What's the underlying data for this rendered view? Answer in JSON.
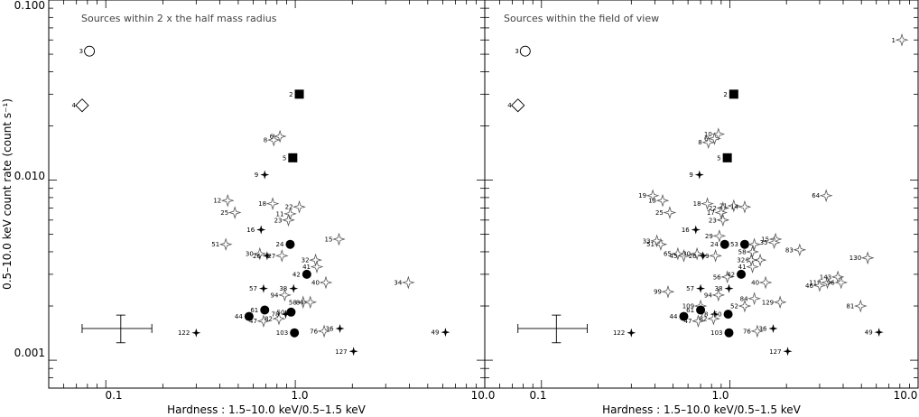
{
  "axes": {
    "xlabel": "Hardness : 1.5–10.0 keV/0.5–1.5 keV",
    "ylabel": "0.5–10.0 keV count rate (count s⁻¹)",
    "xticks": [
      "0.1",
      "1.0",
      "10.0"
    ],
    "xticks_right": [
      "0.1",
      "1.0",
      "10.0"
    ],
    "yticks": [
      "0.100",
      "0.010",
      "0.001"
    ]
  },
  "chart_data": [
    {
      "type": "scatter",
      "title": "Sources within 2 x the half mass radius",
      "xlabel": "Hardness : 1.5–10.0 keV/0.5–1.5 keV",
      "ylabel": "0.5–10.0 keV count rate (count s⁻¹)",
      "xscale": "log",
      "yscale": "log",
      "xlim": [
        0.05,
        10
      ],
      "ylim": [
        0.0007,
        0.1
      ],
      "grid": false,
      "error_bar": {
        "x": 0.12,
        "y": 0.0015,
        "xerr": [
          0.075,
          0.175
        ],
        "yerr": [
          0.00125,
          0.00178
        ]
      },
      "points": [
        {
          "label": "3",
          "x": 0.082,
          "y": 0.052,
          "marker": "open-circle"
        },
        {
          "label": "4",
          "x": 0.075,
          "y": 0.026,
          "marker": "open-diamond"
        },
        {
          "label": "2",
          "x": 1.05,
          "y": 0.03,
          "marker": "filled-square"
        },
        {
          "label": "5",
          "x": 0.97,
          "y": 0.0133,
          "marker": "filled-square"
        },
        {
          "label": "8",
          "x": 0.77,
          "y": 0.0167,
          "marker": "open-star"
        },
        {
          "label": "6",
          "x": 0.83,
          "y": 0.0175,
          "marker": "open-star"
        },
        {
          "label": "9",
          "x": 0.69,
          "y": 0.0107,
          "marker": "filled-star"
        },
        {
          "label": "12",
          "x": 0.44,
          "y": 0.0077,
          "marker": "open-star"
        },
        {
          "label": "25",
          "x": 0.48,
          "y": 0.0066,
          "marker": "open-star"
        },
        {
          "label": "18",
          "x": 0.76,
          "y": 0.0074,
          "marker": "open-star"
        },
        {
          "label": "22",
          "x": 1.05,
          "y": 0.0071,
          "marker": "open-star"
        },
        {
          "label": "11",
          "x": 0.94,
          "y": 0.0065,
          "marker": "open-star"
        },
        {
          "label": "23",
          "x": 0.92,
          "y": 0.006,
          "marker": "open-star"
        },
        {
          "label": "16",
          "x": 0.66,
          "y": 0.0053,
          "marker": "filled-star"
        },
        {
          "label": "51",
          "x": 0.43,
          "y": 0.0044,
          "marker": "open-star"
        },
        {
          "label": "24",
          "x": 0.94,
          "y": 0.0044,
          "marker": "filled-circle"
        },
        {
          "label": "15",
          "x": 1.7,
          "y": 0.0047,
          "marker": "open-star"
        },
        {
          "label": "30",
          "x": 0.65,
          "y": 0.0039,
          "marker": "open-star"
        },
        {
          "label": "26",
          "x": 0.71,
          "y": 0.0038,
          "marker": "filled-star"
        },
        {
          "label": "27",
          "x": 0.85,
          "y": 0.0038,
          "marker": "open-star"
        },
        {
          "label": "32",
          "x": 1.28,
          "y": 0.0036,
          "marker": "open-star"
        },
        {
          "label": "41",
          "x": 1.3,
          "y": 0.0033,
          "marker": "open-star"
        },
        {
          "label": "42",
          "x": 1.15,
          "y": 0.003,
          "marker": "filled-circle"
        },
        {
          "label": "40",
          "x": 1.45,
          "y": 0.0027,
          "marker": "open-star"
        },
        {
          "label": "34",
          "x": 3.95,
          "y": 0.0027,
          "marker": "open-star"
        },
        {
          "label": "57",
          "x": 0.68,
          "y": 0.0025,
          "marker": "filled-star"
        },
        {
          "label": "38",
          "x": 0.98,
          "y": 0.0025,
          "marker": "filled-star"
        },
        {
          "label": "94",
          "x": 0.88,
          "y": 0.0023,
          "marker": "open-star"
        },
        {
          "label": "58",
          "x": 1.1,
          "y": 0.0021,
          "marker": "open-star"
        },
        {
          "label": "84",
          "x": 1.2,
          "y": 0.0021,
          "marker": "open-star"
        },
        {
          "label": "61",
          "x": 0.69,
          "y": 0.0019,
          "marker": "filled-circle"
        },
        {
          "label": "44",
          "x": 0.57,
          "y": 0.00175,
          "marker": "filled-circle"
        },
        {
          "label": "47",
          "x": 0.68,
          "y": 0.00165,
          "marker": "open-star"
        },
        {
          "label": "82",
          "x": 0.82,
          "y": 0.0017,
          "marker": "open-star"
        },
        {
          "label": "78",
          "x": 0.89,
          "y": 0.0018,
          "marker": "filled-star"
        },
        {
          "label": "50",
          "x": 0.95,
          "y": 0.00185,
          "marker": "filled-circle"
        },
        {
          "label": "103",
          "x": 0.99,
          "y": 0.00142,
          "marker": "filled-circle"
        },
        {
          "label": "76",
          "x": 1.42,
          "y": 0.00145,
          "marker": "open-star"
        },
        {
          "label": "36",
          "x": 1.72,
          "y": 0.0015,
          "marker": "filled-star"
        },
        {
          "label": "122",
          "x": 0.3,
          "y": 0.00142,
          "marker": "filled-star"
        },
        {
          "label": "127",
          "x": 2.03,
          "y": 0.00112,
          "marker": "filled-star"
        },
        {
          "label": "49",
          "x": 6.2,
          "y": 0.00143,
          "marker": "filled-star"
        }
      ]
    },
    {
      "type": "scatter",
      "title": "Sources within the field of view",
      "xlabel": "Hardness : 1.5–10.0 keV/0.5–1.5 keV",
      "ylabel": "",
      "xscale": "log",
      "yscale": "log",
      "xlim": [
        0.05,
        10
      ],
      "ylim": [
        0.0007,
        0.1
      ],
      "grid": false,
      "error_bar": {
        "x": 0.12,
        "y": 0.0015,
        "xerr": [
          0.075,
          0.175
        ],
        "yerr": [
          0.00125,
          0.00178
        ]
      },
      "points": [
        {
          "label": "1",
          "x": 8.2,
          "y": 0.06,
          "marker": "open-star"
        },
        {
          "label": "3",
          "x": 0.082,
          "y": 0.052,
          "marker": "open-circle"
        },
        {
          "label": "4",
          "x": 0.075,
          "y": 0.026,
          "marker": "open-diamond"
        },
        {
          "label": "2",
          "x": 1.05,
          "y": 0.03,
          "marker": "filled-square"
        },
        {
          "label": "5",
          "x": 0.97,
          "y": 0.0133,
          "marker": "filled-square"
        },
        {
          "label": "10",
          "x": 0.87,
          "y": 0.018,
          "marker": "open-star"
        },
        {
          "label": "6",
          "x": 0.83,
          "y": 0.017,
          "marker": "open-star"
        },
        {
          "label": "8",
          "x": 0.77,
          "y": 0.0162,
          "marker": "open-star"
        },
        {
          "label": "9",
          "x": 0.69,
          "y": 0.0107,
          "marker": "filled-star"
        },
        {
          "label": "64",
          "x": 3.25,
          "y": 0.0082,
          "marker": "open-star"
        },
        {
          "label": "19",
          "x": 0.39,
          "y": 0.0082,
          "marker": "open-star"
        },
        {
          "label": "13",
          "x": 0.44,
          "y": 0.0077,
          "marker": "open-star"
        },
        {
          "label": "25",
          "x": 0.48,
          "y": 0.0066,
          "marker": "open-star"
        },
        {
          "label": "18",
          "x": 0.76,
          "y": 0.0074,
          "marker": "open-star"
        },
        {
          "label": "22",
          "x": 0.92,
          "y": 0.007,
          "marker": "open-star"
        },
        {
          "label": "21",
          "x": 1.05,
          "y": 0.0072,
          "marker": "open-star"
        },
        {
          "label": "14",
          "x": 1.2,
          "y": 0.0071,
          "marker": "open-star"
        },
        {
          "label": "17",
          "x": 0.9,
          "y": 0.0066,
          "marker": "open-star"
        },
        {
          "label": "23",
          "x": 0.92,
          "y": 0.006,
          "marker": "open-star"
        },
        {
          "label": "16",
          "x": 0.66,
          "y": 0.0053,
          "marker": "filled-star"
        },
        {
          "label": "29",
          "x": 0.88,
          "y": 0.0049,
          "marker": "open-star"
        },
        {
          "label": "33",
          "x": 0.41,
          "y": 0.0046,
          "marker": "open-star"
        },
        {
          "label": "51",
          "x": 0.43,
          "y": 0.0044,
          "marker": "open-star"
        },
        {
          "label": "24",
          "x": 0.94,
          "y": 0.0044,
          "marker": "filled-circle"
        },
        {
          "label": "53",
          "x": 1.2,
          "y": 0.0044,
          "marker": "filled-circle"
        },
        {
          "label": "66",
          "x": 1.35,
          "y": 0.0044,
          "marker": "open-star"
        },
        {
          "label": "15",
          "x": 1.75,
          "y": 0.0047,
          "marker": "open-star"
        },
        {
          "label": "35",
          "x": 1.72,
          "y": 0.0045,
          "marker": "open-star"
        },
        {
          "label": "83",
          "x": 2.35,
          "y": 0.0041,
          "marker": "open-star"
        },
        {
          "label": "130",
          "x": 5.4,
          "y": 0.0037,
          "marker": "open-star"
        },
        {
          "label": "65",
          "x": 0.53,
          "y": 0.0039,
          "marker": "open-star"
        },
        {
          "label": "45",
          "x": 0.57,
          "y": 0.0038,
          "marker": "open-star"
        },
        {
          "label": "30",
          "x": 0.67,
          "y": 0.0039,
          "marker": "open-star"
        },
        {
          "label": "26",
          "x": 0.72,
          "y": 0.0038,
          "marker": "filled-star"
        },
        {
          "label": "39",
          "x": 0.84,
          "y": 0.0038,
          "marker": "open-star"
        },
        {
          "label": "58",
          "x": 1.32,
          "y": 0.004,
          "marker": "open-star"
        },
        {
          "label": "90",
          "x": 1.45,
          "y": 0.0036,
          "marker": "open-star"
        },
        {
          "label": "32",
          "x": 1.3,
          "y": 0.0036,
          "marker": "open-star"
        },
        {
          "label": "41",
          "x": 1.32,
          "y": 0.0033,
          "marker": "open-star"
        },
        {
          "label": "56",
          "x": 0.97,
          "y": 0.0029,
          "marker": "open-star"
        },
        {
          "label": "42",
          "x": 1.15,
          "y": 0.003,
          "marker": "filled-circle"
        },
        {
          "label": "40",
          "x": 1.55,
          "y": 0.0027,
          "marker": "open-star"
        },
        {
          "label": "143",
          "x": 3.75,
          "y": 0.0029,
          "marker": "open-star"
        },
        {
          "label": "119",
          "x": 3.3,
          "y": 0.0027,
          "marker": "open-star"
        },
        {
          "label": "96",
          "x": 3.9,
          "y": 0.0027,
          "marker": "open-star"
        },
        {
          "label": "46",
          "x": 3.0,
          "y": 0.0026,
          "marker": "open-star"
        },
        {
          "label": "99",
          "x": 0.47,
          "y": 0.0024,
          "marker": "open-star"
        },
        {
          "label": "57",
          "x": 0.7,
          "y": 0.0025,
          "marker": "filled-star"
        },
        {
          "label": "38",
          "x": 0.99,
          "y": 0.0025,
          "marker": "filled-star"
        },
        {
          "label": "94",
          "x": 0.87,
          "y": 0.0023,
          "marker": "open-star"
        },
        {
          "label": "84",
          "x": 1.35,
          "y": 0.0022,
          "marker": "open-star"
        },
        {
          "label": "129",
          "x": 1.85,
          "y": 0.0021,
          "marker": "open-star"
        },
        {
          "label": "81",
          "x": 4.95,
          "y": 0.002,
          "marker": "open-star"
        },
        {
          "label": "109",
          "x": 0.7,
          "y": 0.002,
          "marker": "open-star"
        },
        {
          "label": "52",
          "x": 1.2,
          "y": 0.002,
          "marker": "open-star"
        },
        {
          "label": "61",
          "x": 0.7,
          "y": 0.0019,
          "marker": "filled-circle"
        },
        {
          "label": "44",
          "x": 0.57,
          "y": 0.00175,
          "marker": "filled-circle"
        },
        {
          "label": "47",
          "x": 0.68,
          "y": 0.00165,
          "marker": "open-star"
        },
        {
          "label": "78",
          "x": 0.83,
          "y": 0.0018,
          "marker": "filled-star"
        },
        {
          "label": "82",
          "x": 0.82,
          "y": 0.0017,
          "marker": "open-star"
        },
        {
          "label": "50",
          "x": 0.98,
          "y": 0.0018,
          "marker": "filled-circle"
        },
        {
          "label": "103",
          "x": 0.99,
          "y": 0.00142,
          "marker": "filled-circle"
        },
        {
          "label": "76",
          "x": 1.4,
          "y": 0.00145,
          "marker": "open-star"
        },
        {
          "label": "36",
          "x": 1.7,
          "y": 0.0015,
          "marker": "filled-star"
        },
        {
          "label": "122",
          "x": 0.3,
          "y": 0.00142,
          "marker": "filled-star"
        },
        {
          "label": "127",
          "x": 2.03,
          "y": 0.00112,
          "marker": "filled-star"
        },
        {
          "label": "49",
          "x": 6.2,
          "y": 0.00143,
          "marker": "filled-star"
        }
      ]
    }
  ]
}
